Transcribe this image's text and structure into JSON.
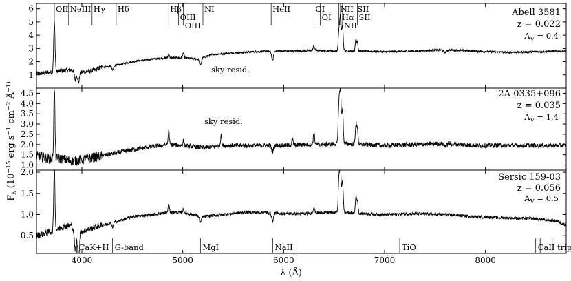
{
  "figure": {
    "ylabel": "F_λ (10^−15 erg s^−1 cm^−2 Å^−1)",
    "xlabel": "λ (Å)",
    "xlim": [
      3550,
      8800
    ],
    "xticks": [
      4000,
      5000,
      6000,
      7000,
      8000
    ],
    "xtick_labels": [
      "4000",
      "5000",
      "6000",
      "7000",
      "8000"
    ],
    "line_color": "#000000"
  },
  "panels": [
    {
      "name": "Abell 3581",
      "redshift": "z = 0.022",
      "extinction": "A_V =  0.4",
      "ylim": [
        0,
        6.4
      ],
      "yticks": [
        1,
        2,
        3,
        4,
        5,
        6
      ],
      "ytick_labels": [
        "1",
        "2",
        "3",
        "4",
        "5",
        "6"
      ],
      "annotation": "sky resid.",
      "line_markers": [
        {
          "label": "OII",
          "wavelength": 3727,
          "row": 0
        },
        {
          "label": "NeIII",
          "wavelength": 3869,
          "row": 0
        },
        {
          "label": "Hγ",
          "wavelength": 4101,
          "row": 0
        },
        {
          "label": "Hδ",
          "wavelength": 4340,
          "row": 0
        },
        {
          "label": "Hβ",
          "wavelength": 4861,
          "row": 0
        },
        {
          "label": "OIII",
          "wavelength": 4959,
          "row": 1
        },
        {
          "label": "OIII",
          "wavelength": 5007,
          "row": 2
        },
        {
          "label": "NI",
          "wavelength": 5200,
          "row": 0
        },
        {
          "label": "HeII",
          "wavelength": 5876,
          "row": 0
        },
        {
          "label": "OI",
          "wavelength": 6300,
          "row": 0
        },
        {
          "label": "OI",
          "wavelength": 6363,
          "row": 1
        },
        {
          "label": "NII",
          "wavelength": 6548,
          "row": 0
        },
        {
          "label": "Hα",
          "wavelength": 6563,
          "row": 1
        },
        {
          "label": "NII",
          "wavelength": 6583,
          "row": 2
        },
        {
          "label": "SII",
          "wavelength": 6716,
          "row": 0
        },
        {
          "label": "SII",
          "wavelength": 6731,
          "row": 1
        }
      ],
      "spectrum": {
        "continuum": [
          [
            3550,
            1.1
          ],
          [
            3700,
            1.2
          ],
          [
            3800,
            1.3
          ],
          [
            3900,
            1.4
          ],
          [
            3960,
            0.9
          ],
          [
            4000,
            1.2
          ],
          [
            4100,
            1.3
          ],
          [
            4200,
            1.6
          ],
          [
            4300,
            1.65
          ],
          [
            4500,
            2.0
          ],
          [
            4700,
            2.2
          ],
          [
            4850,
            2.3
          ],
          [
            5000,
            2.3
          ],
          [
            5150,
            2.2
          ],
          [
            5300,
            2.55
          ],
          [
            5500,
            2.65
          ],
          [
            5700,
            2.75
          ],
          [
            5900,
            2.8
          ],
          [
            6100,
            2.8
          ],
          [
            6300,
            2.85
          ],
          [
            6500,
            2.8
          ],
          [
            6800,
            2.8
          ],
          [
            7000,
            2.75
          ],
          [
            7300,
            2.8
          ],
          [
            7600,
            2.9
          ],
          [
            7900,
            2.8
          ],
          [
            8200,
            2.7
          ],
          [
            8500,
            2.75
          ],
          [
            8800,
            2.8
          ]
        ],
        "emission": [
          [
            3727,
            3.7,
            7
          ],
          [
            4861,
            0.3,
            6
          ],
          [
            5007,
            0.4,
            6
          ],
          [
            6300,
            0.35,
            7
          ],
          [
            6548,
            1.5,
            7
          ],
          [
            6563,
            2.6,
            7
          ],
          [
            6583,
            1.9,
            7
          ],
          [
            6716,
            0.9,
            6
          ],
          [
            6731,
            0.7,
            6
          ]
        ],
        "absorption": [
          [
            3933,
            0.5,
            7
          ],
          [
            3968,
            0.5,
            7
          ],
          [
            4305,
            0.3,
            8
          ],
          [
            5175,
            0.5,
            10
          ],
          [
            5890,
            0.7,
            9
          ],
          [
            7600,
            0.2,
            15
          ]
        ],
        "noise": 0.08
      }
    },
    {
      "name": "2A 0335+096",
      "redshift": "z = 0.035",
      "extinction": "A_V =  1.4",
      "ylim": [
        0.75,
        4.75
      ],
      "yticks": [
        1.0,
        1.5,
        2.0,
        2.5,
        3.0,
        3.5,
        4.0,
        4.5
      ],
      "ytick_labels": [
        "1.0",
        "1.5",
        "2.0",
        "2.5",
        "3.0",
        "3.5",
        "4.0",
        "4.5"
      ],
      "annotation": "sky resid.",
      "spectrum": {
        "continuum": [
          [
            3550,
            1.45
          ],
          [
            3700,
            1.3
          ],
          [
            3800,
            1.3
          ],
          [
            3900,
            1.2
          ],
          [
            4000,
            1.25
          ],
          [
            4100,
            1.35
          ],
          [
            4300,
            1.55
          ],
          [
            4500,
            1.75
          ],
          [
            4700,
            1.9
          ],
          [
            4850,
            2.0
          ],
          [
            5000,
            1.95
          ],
          [
            5200,
            1.85
          ],
          [
            5400,
            1.95
          ],
          [
            5600,
            1.95
          ],
          [
            5800,
            1.95
          ],
          [
            6000,
            1.95
          ],
          [
            6200,
            2.0
          ],
          [
            6400,
            2.0
          ],
          [
            6600,
            2.05
          ],
          [
            6800,
            2.0
          ],
          [
            7000,
            1.95
          ],
          [
            7300,
            2.0
          ],
          [
            7600,
            2.05
          ],
          [
            7900,
            1.95
          ],
          [
            8200,
            1.95
          ],
          [
            8500,
            1.95
          ],
          [
            8800,
            1.95
          ]
        ],
        "emission": [
          [
            3727,
            3.5,
            6
          ],
          [
            4861,
            0.65,
            6
          ],
          [
            5007,
            0.25,
            6
          ],
          [
            5380,
            0.6,
            5
          ],
          [
            6087,
            0.3,
            6
          ],
          [
            6300,
            0.55,
            7
          ],
          [
            6548,
            2.0,
            7
          ],
          [
            6563,
            2.5,
            7
          ],
          [
            6583,
            1.7,
            7
          ],
          [
            6716,
            1.0,
            6
          ],
          [
            6731,
            0.8,
            6
          ]
        ],
        "absorption": [
          [
            5890,
            0.3,
            9
          ],
          [
            7600,
            0.1,
            15
          ]
        ],
        "noise": 0.11
      }
    },
    {
      "name": "Sersic 159-03",
      "redshift": "z = 0.056",
      "extinction": "A_V =  0.5",
      "ylim": [
        0.08,
        2.05
      ],
      "yticks": [
        0.5,
        1.0,
        1.5,
        2.0
      ],
      "ytick_labels": [
        "0.5",
        "1.0",
        "1.5",
        "2.0"
      ],
      "line_markers": [
        {
          "label": "CaK+H",
          "wavelength": 3950
        },
        {
          "label": "G-band",
          "wavelength": 4304
        },
        {
          "label": "MgI",
          "wavelength": 5175
        },
        {
          "label": "NaII",
          "wavelength": 5893
        },
        {
          "label": "TiO",
          "wavelength": 7150
        },
        {
          "label": "CaII triplet",
          "wavelength": 8498,
          "extra_wavelengths": [
            8542,
            8662
          ]
        }
      ],
      "spectrum": {
        "continuum": [
          [
            3550,
            0.5
          ],
          [
            3700,
            0.6
          ],
          [
            3800,
            0.7
          ],
          [
            3900,
            0.75
          ],
          [
            3960,
            0.3
          ],
          [
            4000,
            0.6
          ],
          [
            4150,
            0.72
          ],
          [
            4300,
            0.8
          ],
          [
            4500,
            0.95
          ],
          [
            4700,
            1.0
          ],
          [
            4850,
            1.05
          ],
          [
            5000,
            1.05
          ],
          [
            5200,
            0.95
          ],
          [
            5400,
            1.0
          ],
          [
            5600,
            1.05
          ],
          [
            5800,
            1.05
          ],
          [
            6000,
            1.02
          ],
          [
            6200,
            1.02
          ],
          [
            6400,
            1.05
          ],
          [
            6600,
            1.05
          ],
          [
            6800,
            1.02
          ],
          [
            7000,
            1.0
          ],
          [
            7300,
            1.02
          ],
          [
            7600,
            1.0
          ],
          [
            7900,
            0.95
          ],
          [
            8200,
            0.92
          ],
          [
            8500,
            0.9
          ],
          [
            8700,
            0.85
          ],
          [
            8800,
            0.75
          ]
        ],
        "emission": [
          [
            3727,
            1.6,
            6
          ],
          [
            4861,
            0.2,
            6
          ],
          [
            5007,
            0.08,
            6
          ],
          [
            6300,
            0.15,
            7
          ],
          [
            6548,
            0.8,
            7
          ],
          [
            6563,
            1.0,
            7
          ],
          [
            6583,
            0.75,
            7
          ],
          [
            6716,
            0.4,
            6
          ],
          [
            6731,
            0.3,
            6
          ]
        ],
        "absorption": [
          [
            3933,
            0.35,
            7
          ],
          [
            3968,
            0.35,
            7
          ],
          [
            4305,
            0.1,
            8
          ],
          [
            5175,
            0.15,
            10
          ],
          [
            5890,
            0.2,
            9
          ]
        ],
        "noise": 0.035
      }
    }
  ]
}
